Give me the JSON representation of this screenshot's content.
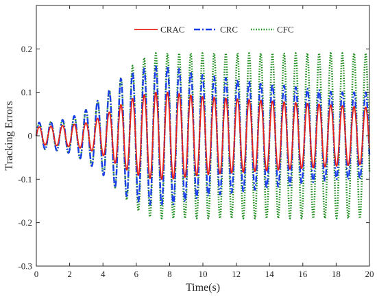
{
  "chart_data": {
    "type": "line",
    "title": "",
    "xlabel": "Time(s)",
    "ylabel": "Tracking Errors",
    "xlim": [
      0,
      20
    ],
    "ylim": [
      -0.3,
      0.3
    ],
    "x_ticks": [
      "0",
      "2",
      "4",
      "6",
      "8",
      "10",
      "12",
      "14",
      "16",
      "18",
      "20"
    ],
    "y_ticks": [
      "-0.3",
      "-0.2",
      "-0.1",
      "0",
      "0.1",
      "0.2"
    ],
    "grid": false,
    "legend_position": "top-center",
    "period": 0.7,
    "series": [
      {
        "name": "CRAC",
        "color": "#e8221b",
        "style": "solid",
        "envelope": {
          "t": [
            0,
            1,
            2,
            3,
            4,
            5,
            6,
            7,
            8,
            9,
            10,
            12,
            14,
            16,
            18,
            20
          ],
          "amp": [
            0.02,
            0.022,
            0.025,
            0.03,
            0.045,
            0.07,
            0.09,
            0.1,
            0.1,
            0.095,
            0.09,
            0.085,
            0.08,
            0.075,
            0.07,
            0.065
          ]
        }
      },
      {
        "name": "CRC",
        "color": "#1b3ee8",
        "style": "dashdot",
        "envelope": {
          "t": [
            0,
            1,
            2,
            3,
            4,
            5,
            6,
            7,
            8,
            9,
            10,
            12,
            14,
            16,
            18,
            20
          ],
          "amp": [
            0.03,
            0.032,
            0.04,
            0.06,
            0.09,
            0.13,
            0.15,
            0.16,
            0.16,
            0.15,
            0.14,
            0.13,
            0.12,
            0.11,
            0.1,
            0.1
          ]
        }
      },
      {
        "name": "CFC",
        "color": "#1a8a1a",
        "style": "dotted",
        "envelope": {
          "t": [
            0,
            1,
            2,
            3,
            4,
            5,
            6,
            7,
            8,
            9,
            10,
            12,
            14,
            16,
            18,
            20
          ],
          "amp": [
            0.03,
            0.032,
            0.04,
            0.06,
            0.09,
            0.13,
            0.17,
            0.19,
            0.19,
            0.19,
            0.19,
            0.19,
            0.19,
            0.19,
            0.19,
            0.19
          ]
        }
      }
    ]
  }
}
